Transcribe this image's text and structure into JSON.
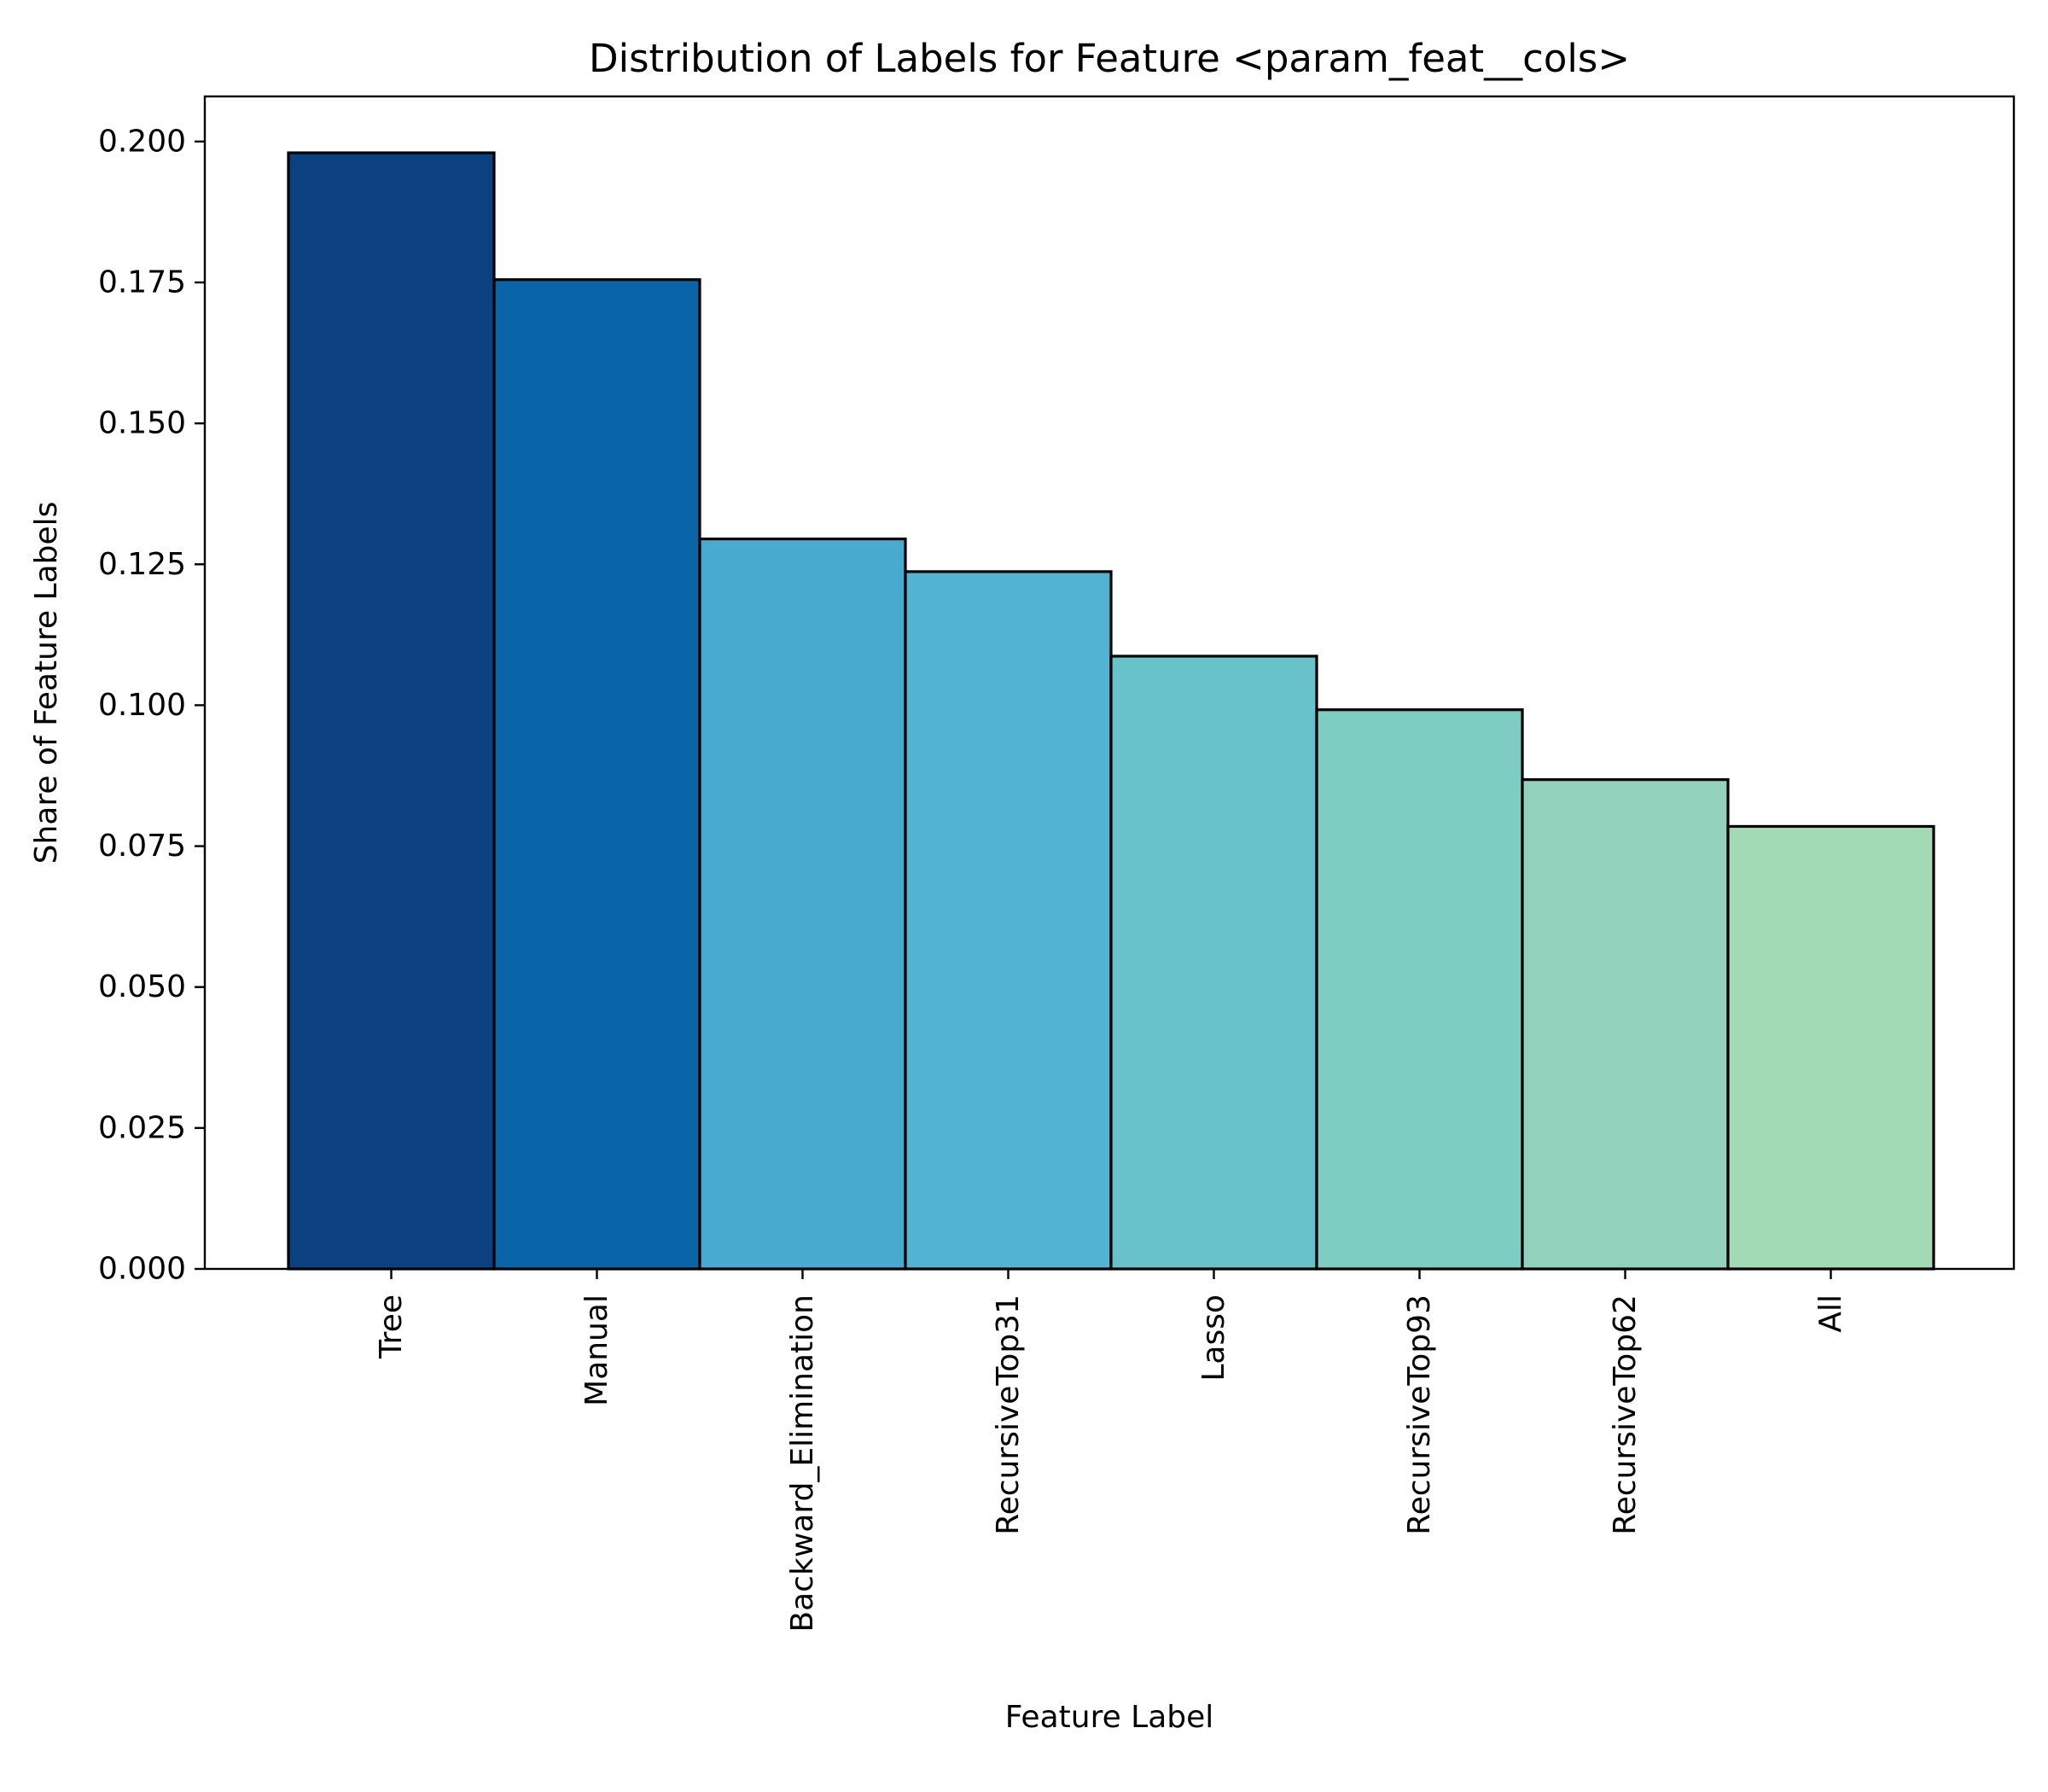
{
  "chart_data": {
    "type": "bar",
    "title": "Distribution of Labels for Feature <param_feat__cols>",
    "xlabel": "Feature Label",
    "ylabel": "Share of Feature Labels",
    "categories": [
      "Tree",
      "Manual",
      "Backward_Elimination",
      "RecursiveTop31",
      "Lasso",
      "RecursiveTop93",
      "RecursiveTop62",
      "All"
    ],
    "values": [
      0.198,
      0.1755,
      0.1295,
      0.1237,
      0.1087,
      0.0992,
      0.0868,
      0.0785
    ],
    "colors": [
      "#0b4181",
      "#0a64a8",
      "#48aacf",
      "#52b3d3",
      "#68c2c9",
      "#7ecdc3",
      "#92d2bc",
      "#a2dab6"
    ],
    "ylim": [
      0,
      0.208
    ],
    "yticks": [
      0.0,
      0.025,
      0.05,
      0.075,
      0.1,
      0.125,
      0.15,
      0.175,
      0.2
    ],
    "ytick_labels": [
      "0.000",
      "0.025",
      "0.050",
      "0.075",
      "0.100",
      "0.125",
      "0.150",
      "0.175",
      "0.200"
    ],
    "grid": false,
    "legend": "none"
  }
}
